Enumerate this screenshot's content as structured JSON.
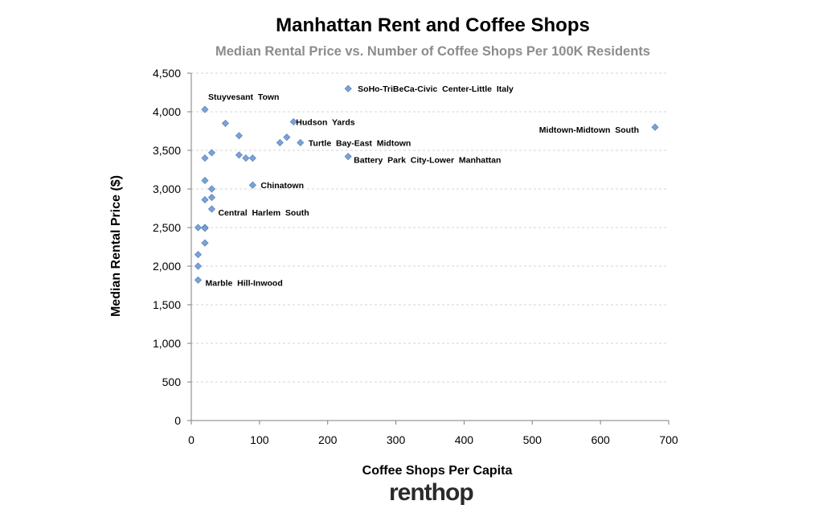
{
  "chart_data": {
    "type": "scatter",
    "title": "Manhattan Rent and Coffee Shops",
    "subtitle": "Median Rental Price vs. Number of Coffee Shops Per 100K Residents",
    "xlabel": "Coffee Shops Per Capita",
    "ylabel": "Median Rental Price ($)",
    "xlim": [
      0,
      700
    ],
    "ylim": [
      0,
      4500
    ],
    "x_ticks": [
      "0",
      "100",
      "200",
      "300",
      "400",
      "500",
      "600",
      "700"
    ],
    "y_ticks": [
      "0",
      "500",
      "1,000",
      "1,500",
      "2,000",
      "2,500",
      "3,000",
      "3,500",
      "4,000",
      "4,500"
    ],
    "grid": "horizontal dashed",
    "legend": "none",
    "marker_color": "#7ba3d6",
    "points": [
      {
        "x": 230,
        "y": 4300,
        "label": "SoHo-TriBeCa-Civic  Center-Little  Italy"
      },
      {
        "x": 20,
        "y": 4030,
        "label": "Stuyvesant  Town"
      },
      {
        "x": 680,
        "y": 3800,
        "label": "Midtown-Midtown  South"
      },
      {
        "x": 150,
        "y": 3870,
        "label": "Hudson  Yards"
      },
      {
        "x": 160,
        "y": 3600,
        "label": "Turtle  Bay-East  Midtown"
      },
      {
        "x": 230,
        "y": 3420,
        "label": "Battery  Park  City-Lower  Manhattan"
      },
      {
        "x": 90,
        "y": 3050,
        "label": "Chinatown"
      },
      {
        "x": 30,
        "y": 2740,
        "label": "Central  Harlem  South"
      },
      {
        "x": 10,
        "y": 1820,
        "label": "Marble  Hill-Inwood"
      },
      {
        "x": 50,
        "y": 3850
      },
      {
        "x": 70,
        "y": 3690
      },
      {
        "x": 140,
        "y": 3670
      },
      {
        "x": 130,
        "y": 3600
      },
      {
        "x": 30,
        "y": 3470
      },
      {
        "x": 70,
        "y": 3440
      },
      {
        "x": 20,
        "y": 3400
      },
      {
        "x": 80,
        "y": 3400
      },
      {
        "x": 90,
        "y": 3400
      },
      {
        "x": 20,
        "y": 3110
      },
      {
        "x": 30,
        "y": 3000
      },
      {
        "x": 30,
        "y": 2890
      },
      {
        "x": 20,
        "y": 2860
      },
      {
        "x": 10,
        "y": 2500
      },
      {
        "x": 20,
        "y": 2500
      },
      {
        "x": 20,
        "y": 2490
      },
      {
        "x": 20,
        "y": 2300
      },
      {
        "x": 10,
        "y": 2150
      },
      {
        "x": 10,
        "y": 2000
      }
    ]
  },
  "brand": {
    "logo_text": "renthop"
  }
}
